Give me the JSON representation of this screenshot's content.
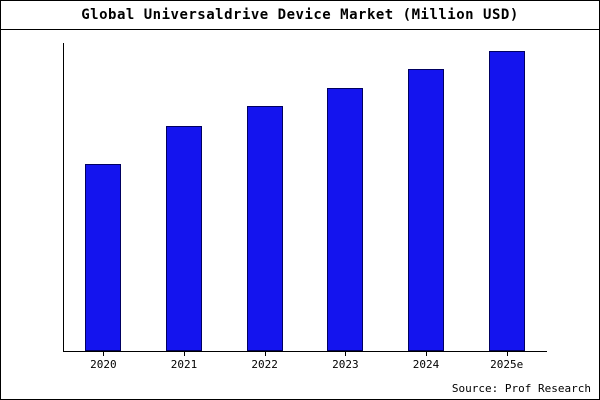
{
  "title": "Global Universaldrive Device Market (Million USD)",
  "source": "Source: Prof Research",
  "colors": {
    "bar_fill": "#1414ee",
    "bar_border": "#000060",
    "axis": "#000000",
    "background": "#ffffff"
  },
  "chart_data": {
    "type": "bar",
    "title": "Global Universaldrive Device Market (Million USD)",
    "categories": [
      "2020",
      "2021",
      "2022",
      "2023",
      "2024",
      "2025e"
    ],
    "values": [
      187,
      225,
      245,
      263,
      282,
      300
    ],
    "xlabel": "",
    "ylabel": "",
    "ylim": [
      0,
      310
    ],
    "grid": false,
    "legend": "none",
    "annotation": "Source: Prof Research"
  }
}
